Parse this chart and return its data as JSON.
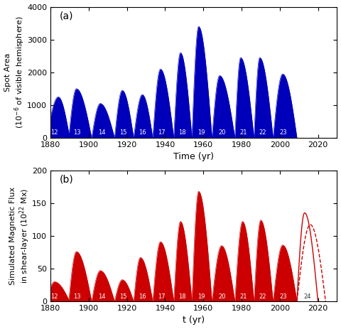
{
  "title_a": "(a)",
  "title_b": "(b)",
  "xlabel_a": "Time (yr)",
  "xlabel_b": "t (yr)",
  "ylabel_a": "Spot Area\n(10$^{-6}$ of visible hemisphere)",
  "ylabel_b": "Simulated Magnetic Flux\nin shear-layer (10$^{22}$ Mx)",
  "xlim": [
    1880,
    2030
  ],
  "ylim_a": [
    0,
    4000
  ],
  "ylim_b": [
    0,
    200
  ],
  "yticks_a": [
    0,
    1000,
    2000,
    3000,
    4000
  ],
  "yticks_b": [
    0,
    50,
    100,
    150,
    200
  ],
  "xticks": [
    1880,
    1900,
    1920,
    1940,
    1960,
    1980,
    2000,
    2020
  ],
  "fill_color_a": "#0000BB",
  "fill_color_b": "#CC0000",
  "background": "#ffffff",
  "cycle_numbers": [
    12,
    13,
    14,
    15,
    16,
    17,
    18,
    19,
    20,
    21,
    22,
    23
  ],
  "cycles_a": {
    "12": {
      "start": 1878.0,
      "peak": 1884.0,
      "end": 1890.0,
      "max": 1250
    },
    "13": {
      "start": 1889.5,
      "peak": 1893.5,
      "end": 1901.5,
      "max": 1500
    },
    "14": {
      "start": 1901.5,
      "peak": 1906.0,
      "end": 1913.5,
      "max": 1050
    },
    "15": {
      "start": 1913.5,
      "peak": 1917.5,
      "end": 1923.5,
      "max": 1450
    },
    "16": {
      "start": 1923.5,
      "peak": 1928.0,
      "end": 1933.5,
      "max": 1320
    },
    "17": {
      "start": 1933.5,
      "peak": 1937.5,
      "end": 1944.5,
      "max": 2100
    },
    "18": {
      "start": 1944.5,
      "peak": 1948.0,
      "end": 1954.0,
      "max": 2600
    },
    "19": {
      "start": 1954.0,
      "peak": 1957.5,
      "end": 1964.5,
      "max": 3400
    },
    "20": {
      "start": 1964.5,
      "peak": 1968.5,
      "end": 1976.5,
      "max": 1900
    },
    "21": {
      "start": 1976.5,
      "peak": 1979.5,
      "end": 1986.5,
      "max": 2450
    },
    "22": {
      "start": 1986.5,
      "peak": 1989.5,
      "end": 1996.5,
      "max": 2450
    },
    "23": {
      "start": 1996.5,
      "peak": 2001.5,
      "end": 2009.0,
      "max": 1950
    }
  },
  "cycles_b": {
    "12": {
      "start": 1878.0,
      "peak": 1882.0,
      "end": 1890.0,
      "max": 30
    },
    "13": {
      "start": 1889.5,
      "peak": 1893.5,
      "end": 1901.5,
      "max": 76
    },
    "14": {
      "start": 1901.5,
      "peak": 1906.0,
      "end": 1913.5,
      "max": 47
    },
    "15": {
      "start": 1913.5,
      "peak": 1917.5,
      "end": 1923.5,
      "max": 33
    },
    "16": {
      "start": 1923.5,
      "peak": 1927.0,
      "end": 1933.5,
      "max": 67
    },
    "17": {
      "start": 1933.5,
      "peak": 1937.5,
      "end": 1944.5,
      "max": 91
    },
    "18": {
      "start": 1944.5,
      "peak": 1948.0,
      "end": 1954.0,
      "max": 122
    },
    "19": {
      "start": 1954.0,
      "peak": 1957.5,
      "end": 1964.5,
      "max": 168
    },
    "20": {
      "start": 1964.5,
      "peak": 1969.5,
      "end": 1976.5,
      "max": 85
    },
    "21": {
      "start": 1976.5,
      "peak": 1980.5,
      "end": 1986.5,
      "max": 122
    },
    "22": {
      "start": 1986.5,
      "peak": 1990.0,
      "end": 1996.5,
      "max": 124
    },
    "23": {
      "start": 1996.5,
      "peak": 2001.5,
      "end": 2009.0,
      "max": 86
    },
    "24_solid": {
      "start": 2009.0,
      "peak": 2013.0,
      "end": 2020.0,
      "max": 135
    },
    "24_dashed": {
      "start": 2009.0,
      "peak": 2016.0,
      "end": 2024.0,
      "max": 117
    }
  },
  "label_positions_a": {
    "12": 1882,
    "13": 1894,
    "14": 1907,
    "15": 1918,
    "16": 1928,
    "17": 1938,
    "18": 1949,
    "19": 1959,
    "20": 1970,
    "21": 1981,
    "22": 1991,
    "23": 2002
  },
  "label_positions_b": {
    "12": 1882,
    "13": 1894,
    "14": 1907,
    "15": 1918,
    "16": 1928,
    "17": 1938,
    "18": 1949,
    "19": 1959,
    "20": 1970,
    "21": 1981,
    "22": 1991,
    "23": 2002
  }
}
